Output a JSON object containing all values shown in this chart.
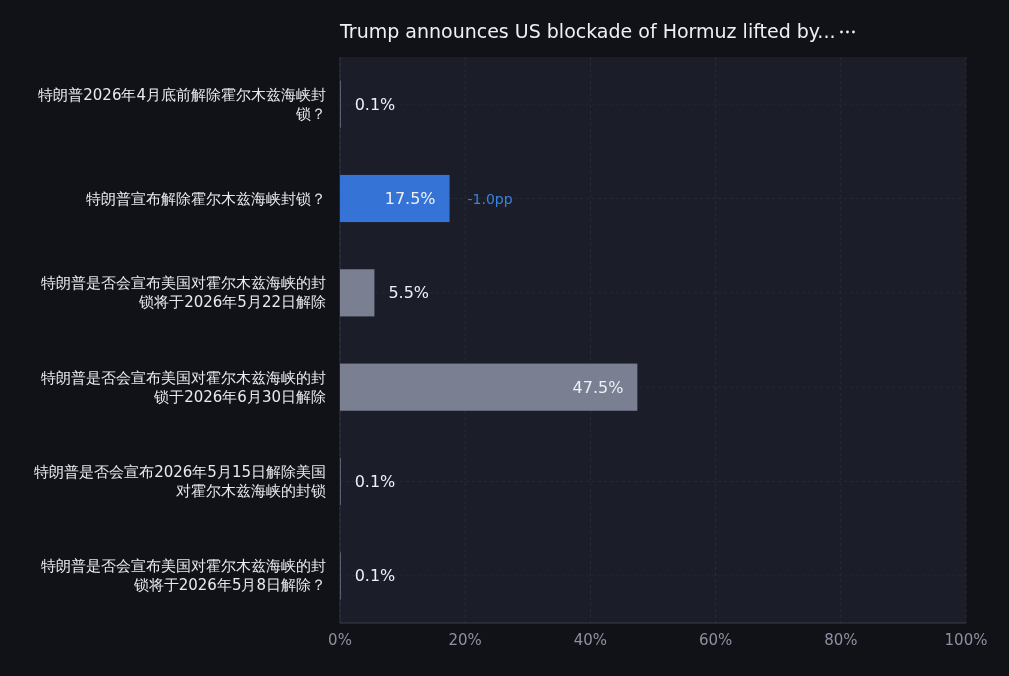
{
  "chart_data": {
    "type": "bar",
    "orientation": "horizontal",
    "title": "Trump announces US blockade of Hormuz lifted by...",
    "categories": [
      "特朗普2026年4月底前解除霍尔木兹海峡封锁？",
      "特朗普宣布解除霍尔木兹海峡封锁？",
      "特朗普是否会宣布美国对霍尔木兹海峡的封锁将于2026年5月22日解除",
      "特朗普是否会宣布美国对霍尔木兹海峡的封锁于2026年6月30日解除",
      "特朗普是否会宣布2026年5月15日解除美国对霍尔木兹海峡的封锁",
      "特朗普是否会宣布美国对霍尔木兹海峡的封锁将于2026年5月8日解除？"
    ],
    "values": [
      0.1,
      17.5,
      5.5,
      47.5,
      0.1,
      0.1
    ],
    "value_labels": [
      "0.1%",
      "17.5%",
      "5.5%",
      "47.5%",
      "0.1%",
      "0.1%"
    ],
    "colors": [
      "#7a7f91",
      "#3574d6",
      "#7a7f91",
      "#7a7f91",
      "#7a7f91",
      "#7a7f91"
    ],
    "xlim": [
      0,
      100
    ],
    "xticks": [
      {
        "value": 0,
        "label": "0%"
      },
      {
        "value": 20,
        "label": "20%"
      },
      {
        "value": 40,
        "label": "40%"
      },
      {
        "value": 60,
        "label": "60%"
      },
      {
        "value": 80,
        "label": "80%"
      },
      {
        "value": 100,
        "label": "100%"
      }
    ],
    "annotations": [
      {
        "text": "-1.0pp",
        "x": 17.5,
        "y": "特朗普宣布解除霍尔木兹海峡封锁？"
      }
    ],
    "grid": true
  }
}
